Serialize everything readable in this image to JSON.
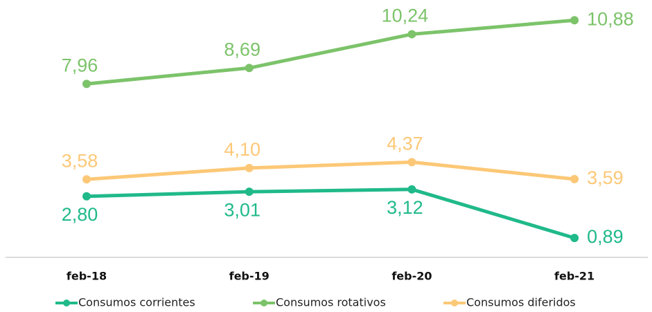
{
  "chart_data": {
    "type": "line",
    "categories": [
      "feb-18",
      "feb-19",
      "feb-20",
      "feb-21"
    ],
    "series": [
      {
        "name": "Consumos corrientes",
        "color": "#20b98a",
        "values": [
          2.8,
          3.01,
          3.12,
          0.89
        ],
        "value_labels": [
          "2,80",
          "3,01",
          "3,12",
          "0,89"
        ]
      },
      {
        "name": "Consumos rotativos",
        "color": "#7cc36a",
        "values": [
          7.96,
          8.69,
          10.24,
          10.88
        ],
        "value_labels": [
          "7,96",
          "8,69",
          "10,24",
          "10,88"
        ]
      },
      {
        "name": "Consumos diferidos",
        "color": "#fcc877",
        "values": [
          3.58,
          4.1,
          4.37,
          3.59
        ],
        "value_labels": [
          "3,58",
          "4,10",
          "4,37",
          "3,59"
        ]
      }
    ],
    "ylim": [
      0,
      11
    ]
  }
}
